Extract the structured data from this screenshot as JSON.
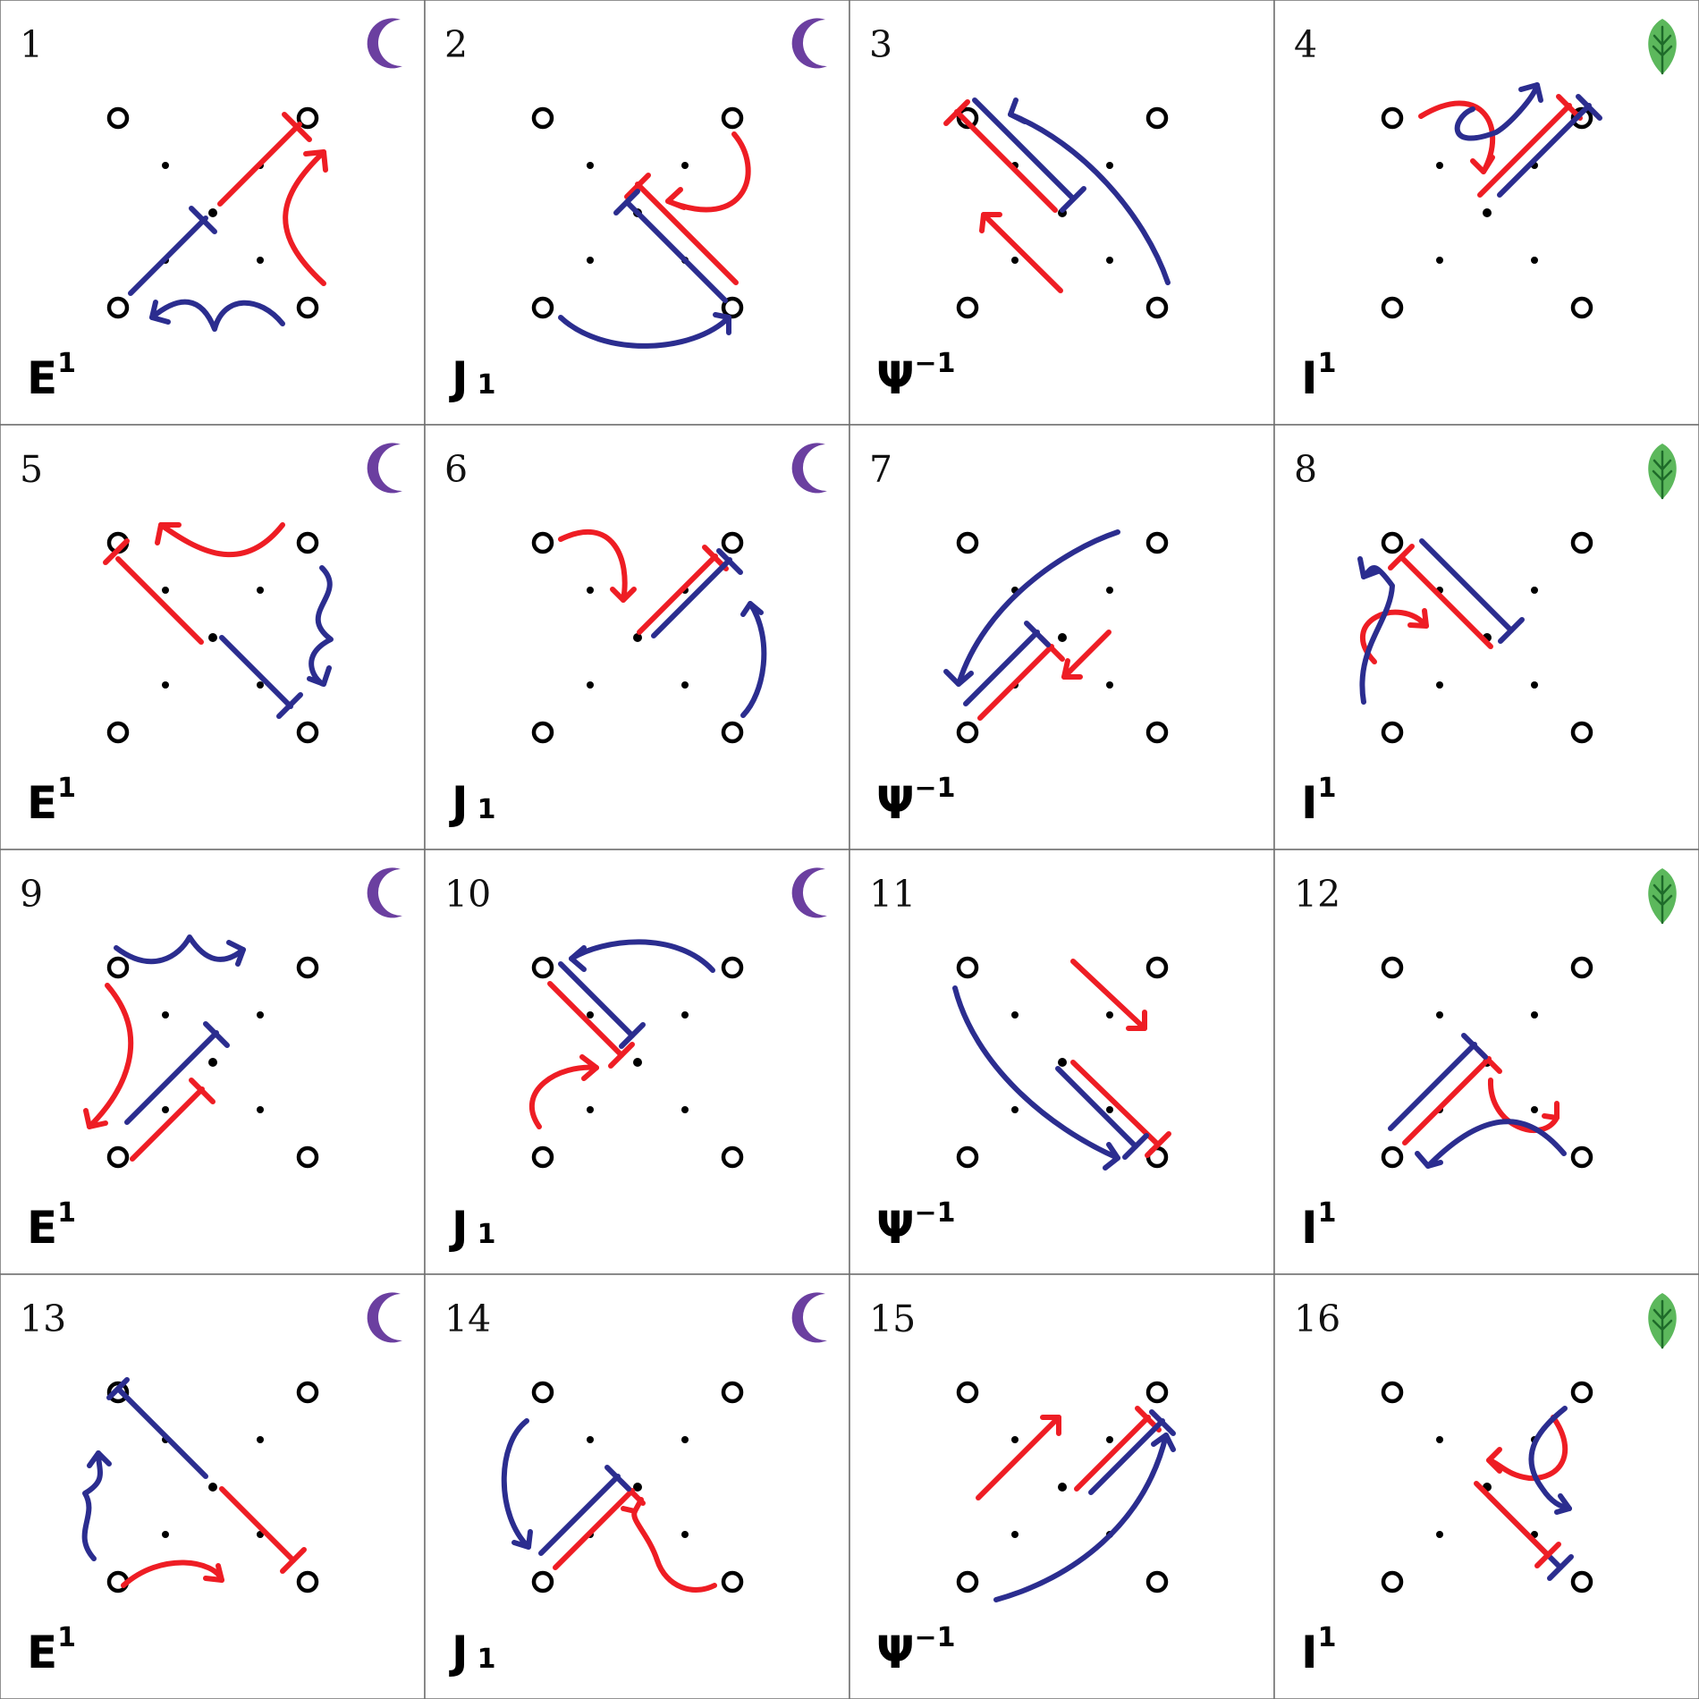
{
  "panels": [
    {
      "number": "1",
      "label": "E",
      "sup": "1",
      "sub": "",
      "icon": "moon-icon"
    },
    {
      "number": "2",
      "label": "J",
      "sup": "",
      "sub": "1",
      "icon": "moon-icon"
    },
    {
      "number": "3",
      "label": "Ψ",
      "sup": "−1",
      "sub": "",
      "icon": "none"
    },
    {
      "number": "4",
      "label": "I",
      "sup": "1",
      "sub": "",
      "icon": "leaf-icon"
    },
    {
      "number": "5",
      "label": "E",
      "sup": "1",
      "sub": "",
      "icon": "moon-icon"
    },
    {
      "number": "6",
      "label": "J",
      "sup": "",
      "sub": "1",
      "icon": "moon-icon"
    },
    {
      "number": "7",
      "label": "Ψ",
      "sup": "−1",
      "sub": "",
      "icon": "none"
    },
    {
      "number": "8",
      "label": "I",
      "sup": "1",
      "sub": "",
      "icon": "leaf-icon"
    },
    {
      "number": "9",
      "label": "E",
      "sup": "1",
      "sub": "",
      "icon": "moon-icon"
    },
    {
      "number": "10",
      "label": "J",
      "sup": "",
      "sub": "1",
      "icon": "moon-icon"
    },
    {
      "number": "11",
      "label": "Ψ",
      "sup": "−1",
      "sub": "",
      "icon": "none"
    },
    {
      "number": "12",
      "label": "I",
      "sup": "1",
      "sub": "",
      "icon": "leaf-icon"
    },
    {
      "number": "13",
      "label": "E",
      "sup": "1",
      "sub": "",
      "icon": "moon-icon"
    },
    {
      "number": "14",
      "label": "J",
      "sup": "",
      "sub": "1",
      "icon": "moon-icon"
    },
    {
      "number": "15",
      "label": "Ψ",
      "sup": "−1",
      "sub": "",
      "icon": "none"
    },
    {
      "number": "16",
      "label": "I",
      "sup": "1",
      "sub": "",
      "icon": "leaf-icon"
    }
  ],
  "colors": {
    "red": "#ee1d24",
    "blue": "#2b2d8f",
    "moon": "#6b3fa0",
    "leaf": "#5cb85c",
    "leaf_vein": "#1e6b2a"
  }
}
